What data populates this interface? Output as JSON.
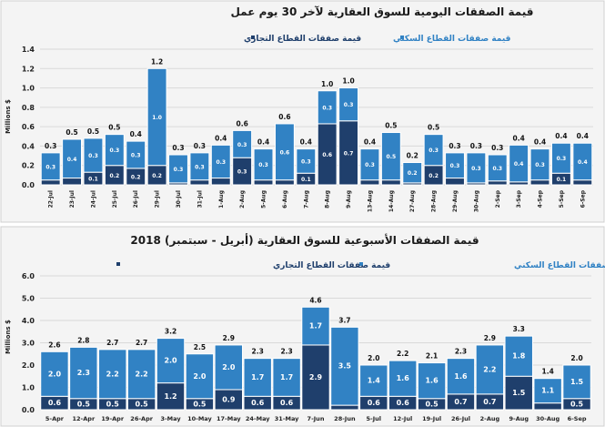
{
  "colors": {
    "residential": "#3182c4",
    "commercial": "#1f3f6c",
    "grid": "#d9d9d9",
    "panel": "#f4f4f4"
  },
  "chart_data": [
    {
      "type": "bar",
      "stacked": true,
      "title": "قيمة الصفقات اليومية للسوق العقارية لآخر 30 يوم عمل",
      "ylabel": "Millions $",
      "ylim": [
        0,
        1.4
      ],
      "yticks": [
        "0.0",
        "0.2",
        "0.4",
        "0.6",
        "0.8",
        "1.0",
        "1.2",
        "1.4"
      ],
      "grid": true,
      "legend_position": "top",
      "categories": [
        "22-Jul",
        "23-Jul",
        "24-Jul",
        "25-Jul",
        "26-Jul",
        "29-Jul",
        "30-Jul",
        "31-Jul",
        "1-Aug",
        "2-Aug",
        "5-Aug",
        "6-Aug",
        "7-Aug",
        "8-Aug",
        "9-Aug",
        "13-Aug",
        "14-Aug",
        "27-Aug",
        "28-Aug",
        "29-Aug",
        "30-Aug",
        "2-Sep",
        "3-Sep",
        "4-Sep",
        "5-Sep",
        "6-Sep"
      ],
      "series": [
        {
          "name": "قيمة صفقات القطاع التجاري",
          "key": "commercial",
          "values": [
            0.05,
            0.07,
            0.13,
            0.2,
            0.17,
            0.2,
            0.02,
            0.05,
            0.07,
            0.28,
            0.05,
            0.05,
            0.12,
            0.63,
            0.66,
            0.05,
            0.05,
            0.02,
            0.2,
            0.07,
            0.02,
            0.04,
            0.03,
            0.05,
            0.12,
            0.05
          ]
        },
        {
          "name": "قيمة صفقات القطاع السكني",
          "key": "residential",
          "values": [
            0.28,
            0.4,
            0.35,
            0.32,
            0.28,
            1.0,
            0.29,
            0.28,
            0.34,
            0.28,
            0.32,
            0.58,
            0.25,
            0.34,
            0.34,
            0.32,
            0.49,
            0.21,
            0.32,
            0.26,
            0.31,
            0.27,
            0.38,
            0.32,
            0.31,
            0.38
          ]
        }
      ],
      "totals": [
        "0.3",
        "0.5",
        "0.5",
        "0.5",
        "0.4",
        "1.2",
        "0.3",
        "0.3",
        "0.4",
        "0.6",
        "0.4",
        "0.6",
        "0.4",
        "1.0",
        "1.0",
        "0.4",
        "0.5",
        "0.2",
        "0.5",
        "0.3",
        "0.3",
        "0.3",
        "0.4",
        "0.4",
        "0.4",
        "0.4"
      ]
    },
    {
      "type": "bar",
      "stacked": true,
      "title": "قيمة الصفقات الأسبوعية للسوق العقارية (أبريل - سبتمبر) 2018",
      "ylabel": "Millions $",
      "ylim": [
        0,
        6
      ],
      "yticks": [
        "0.0",
        "1.0",
        "2.0",
        "3.0",
        "4.0",
        "5.0",
        "6.0"
      ],
      "grid": true,
      "legend_position": "top",
      "categories": [
        "5-Apr",
        "12-Apr",
        "19-Apr",
        "26-Apr",
        "3-May",
        "10-May",
        "17-May",
        "24-May",
        "31-May",
        "7-Jun",
        "28-Jun",
        "5-Jul",
        "12-Jul",
        "19-Jul",
        "26-Jul",
        "2-Aug",
        "9-Aug",
        "30-Aug",
        "6-Sep"
      ],
      "series": [
        {
          "name": "قيمة صفقات القطاع التجاري",
          "key": "commercial",
          "values": [
            0.6,
            0.5,
            0.5,
            0.5,
            1.2,
            0.5,
            0.9,
            0.6,
            0.6,
            2.9,
            0.2,
            0.6,
            0.6,
            0.5,
            0.7,
            0.7,
            1.5,
            0.3,
            0.5
          ]
        },
        {
          "name": "قيمة صفقات القطاع السكني",
          "key": "residential",
          "values": [
            2.0,
            2.3,
            2.2,
            2.2,
            2.0,
            2.0,
            2.0,
            1.7,
            1.7,
            1.7,
            3.5,
            1.4,
            1.6,
            1.6,
            1.6,
            2.2,
            1.8,
            1.1,
            1.5
          ]
        }
      ],
      "totals": [
        "2.6",
        "2.8",
        "2.7",
        "2.7",
        "3.2",
        "2.5",
        "2.9",
        "2.3",
        "2.3",
        "4.6",
        "3.7",
        "2.0",
        "2.2",
        "2.1",
        "2.3",
        "2.9",
        "3.3",
        "1.4",
        "2.0"
      ]
    }
  ]
}
